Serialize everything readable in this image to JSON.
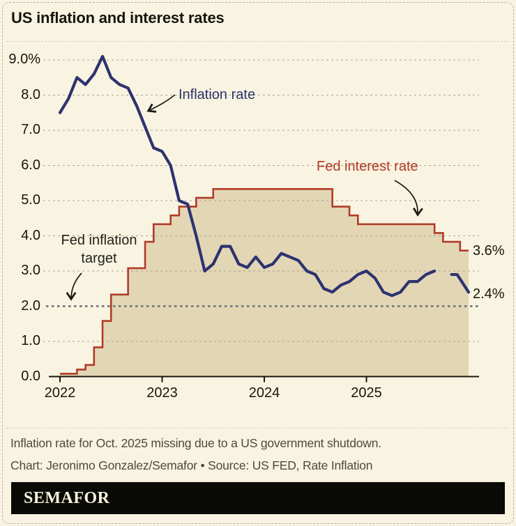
{
  "header": {
    "title": "US inflation and interest rates"
  },
  "chart_data": {
    "type": "line",
    "title": "US inflation and interest rates",
    "x_unit": "month",
    "grid": "dashed horizontal gridlines",
    "legend_position": "inline annotations with arrows",
    "ylim": [
      0,
      9.5
    ],
    "y_tick_labels": [
      "0.0",
      "1.0",
      "2.0",
      "3.0",
      "4.0",
      "5.0",
      "6.0",
      "7.0",
      "8.0",
      "9.0%"
    ],
    "y_tick_values": [
      0,
      1,
      2,
      3,
      4,
      5,
      6,
      7,
      8,
      9
    ],
    "x_tick_labels": [
      "2022",
      "2023",
      "2024",
      "2025"
    ],
    "months": [
      "2022-01",
      "2022-02",
      "2022-03",
      "2022-04",
      "2022-05",
      "2022-06",
      "2022-07",
      "2022-08",
      "2022-09",
      "2022-10",
      "2022-11",
      "2022-12",
      "2023-01",
      "2023-02",
      "2023-03",
      "2023-04",
      "2023-05",
      "2023-06",
      "2023-07",
      "2023-08",
      "2023-09",
      "2023-10",
      "2023-11",
      "2023-12",
      "2024-01",
      "2024-02",
      "2024-03",
      "2024-04",
      "2024-05",
      "2024-06",
      "2024-07",
      "2024-08",
      "2024-09",
      "2024-10",
      "2024-11",
      "2024-12",
      "2025-01",
      "2025-02",
      "2025-03",
      "2025-04",
      "2025-05",
      "2025-06",
      "2025-07",
      "2025-08",
      "2025-09",
      "2025-10",
      "2025-11",
      "2025-12"
    ],
    "series": [
      {
        "name": "Inflation rate",
        "type": "line",
        "color": "#2d336f",
        "values": [
          7.5,
          7.9,
          8.5,
          8.3,
          8.6,
          9.1,
          8.5,
          8.3,
          8.2,
          7.7,
          7.1,
          6.5,
          6.4,
          6.0,
          5.0,
          4.9,
          4.0,
          3.0,
          3.2,
          3.7,
          3.7,
          3.2,
          3.1,
          3.4,
          3.1,
          3.2,
          3.5,
          3.4,
          3.3,
          3.0,
          2.9,
          2.5,
          2.4,
          2.6,
          2.7,
          2.9,
          3.0,
          2.8,
          2.4,
          2.3,
          2.4,
          2.7,
          2.7,
          2.9,
          3.0,
          null,
          2.9,
          2.4
        ]
      },
      {
        "name": "Fed interest rate",
        "type": "step-area",
        "color": "#b03b28",
        "fill_color": "#e3d6b5",
        "values": [
          0.08,
          0.08,
          0.2,
          0.33,
          0.83,
          1.58,
          2.33,
          2.33,
          3.08,
          3.08,
          3.83,
          4.33,
          4.33,
          4.58,
          4.83,
          4.83,
          5.08,
          5.08,
          5.33,
          5.33,
          5.33,
          5.33,
          5.33,
          5.33,
          5.33,
          5.33,
          5.33,
          5.33,
          5.33,
          5.33,
          5.33,
          5.33,
          4.83,
          4.83,
          4.58,
          4.33,
          4.33,
          4.33,
          4.33,
          4.33,
          4.33,
          4.33,
          4.33,
          4.33,
          4.08,
          3.83,
          3.83,
          3.58
        ]
      }
    ],
    "reference_line": {
      "value": 2.0,
      "style": "dashed",
      "color": "#7d7d86"
    },
    "annotations": {
      "inflation_label": "Inflation rate",
      "fed_label": "Fed interest rate",
      "target_label": "Fed inflation target",
      "end_label_fed": "3.6%",
      "end_label_inflation": "2.4%"
    },
    "colors": {
      "background": "#f9f4e1",
      "area_fill": "#e3d6b5",
      "inflation_line": "#2d336f",
      "fed_line": "#b03b28",
      "target_line": "#7d7d86",
      "gridline": "#aaa393",
      "axis": "#16160f"
    }
  },
  "footnote": "Inflation rate for Oct. 2025 missing due to a US government shutdown.",
  "credit": "Chart: Jeronimo Gonzalez/Semafor • Source: US FED, Rate Inflation",
  "logo": "SEMAFOR"
}
